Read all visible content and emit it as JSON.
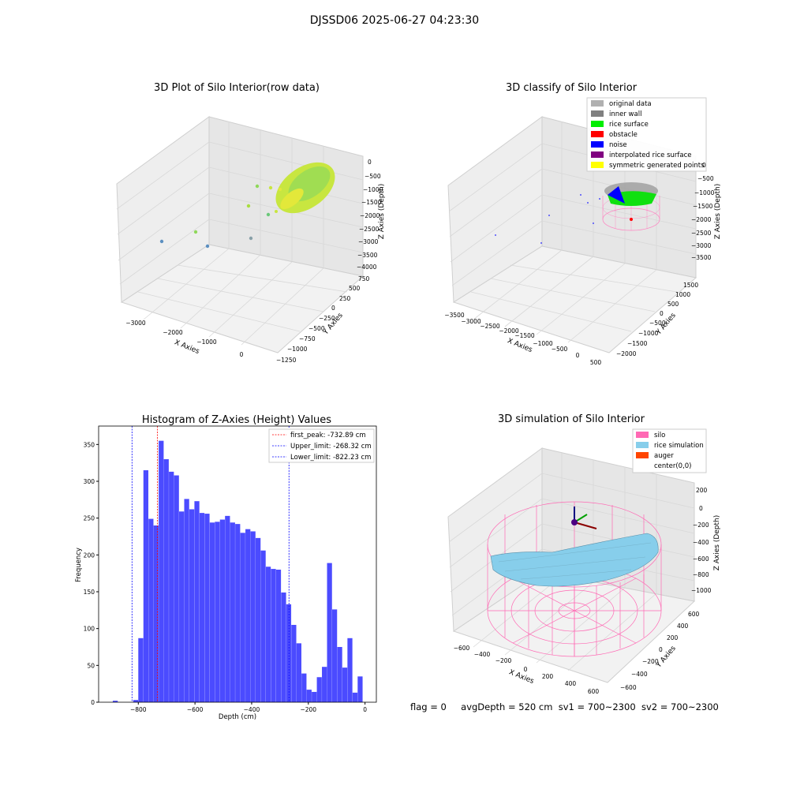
{
  "suptitle": "DJSSD06 2025-06-27 04:23:30",
  "panels": {
    "raw": {
      "title": "3D Plot of Silo Interior(row data)",
      "xlabel": "X Axies",
      "ylabel": "Y Axies",
      "zlabel": "Z Axies (Depth)",
      "xticks": [
        "−3000",
        "−2000",
        "−1000",
        "0"
      ],
      "yticks": [
        "750",
        "500",
        "250",
        "0",
        "−250",
        "−500",
        "−750",
        "−1000",
        "−1250"
      ],
      "zticks": [
        "0",
        "−500",
        "−1000",
        "−1500",
        "−2000",
        "−2500",
        "−3000",
        "−3500",
        "−4000"
      ]
    },
    "classify": {
      "title": "3D classify of Silo Interior",
      "xlabel": "X Axies",
      "ylabel": "Y Axies",
      "zlabel": "Z Axies (Depth)",
      "xticks": [
        "−3500",
        "−3000",
        "−2500",
        "−2000",
        "−1500",
        "−1000",
        "−500",
        "0",
        "500"
      ],
      "yticks": [
        "1500",
        "1000",
        "500",
        "0",
        "−500",
        "−1000",
        "−1500",
        "−2000"
      ],
      "zticks": [
        "0",
        "−500",
        "−1000",
        "−1500",
        "−2000",
        "−2500",
        "−3000",
        "−3500"
      ],
      "legend": [
        {
          "label": "original data",
          "color": "#b0b0b0"
        },
        {
          "label": "inner wall",
          "color": "#808080"
        },
        {
          "label": "rice surface",
          "color": "#00ee00"
        },
        {
          "label": "obstacle",
          "color": "#ff0000"
        },
        {
          "label": "noise",
          "color": "#0000ff"
        },
        {
          "label": "interpolated rice surface",
          "color": "#800080"
        },
        {
          "label": "symmetric generated points",
          "color": "#ffff00"
        }
      ]
    },
    "simulation": {
      "title": "3D simulation of Silo Interior",
      "xlabel": "X Axies",
      "ylabel": "Y Axies",
      "zlabel": "Z Axies (Depth)",
      "xticks": [
        "−600",
        "−400",
        "−200",
        "0",
        "200",
        "400",
        "600"
      ],
      "yticks": [
        "600",
        "400",
        "200",
        "0",
        "−200",
        "−400",
        "−600"
      ],
      "zticks": [
        "200",
        "0",
        "−200",
        "−400",
        "−600",
        "−800",
        "−1000"
      ],
      "legend": [
        {
          "label": "silo",
          "color": "#ff69b4"
        },
        {
          "label": "rice simulation",
          "color": "#87ceeb"
        },
        {
          "label": "auger",
          "color": "#ff4500"
        },
        {
          "label": "center(0,0)",
          "color": "#ffffff"
        }
      ]
    }
  },
  "status": {
    "flag": "flag = 0",
    "avg": "avgDepth = 520 cm",
    "sv1": "sv1 = 700~2300",
    "sv2": "sv2 = 700~2300"
  },
  "chart_data": [
    {
      "type": "bar",
      "title": "Histogram of Z-Axies (Height) Values",
      "xlabel": "Depth (cm)",
      "ylabel": "Frequency",
      "xlim": [
        -940,
        40
      ],
      "ylim": [
        0,
        375
      ],
      "xticks": [
        -800,
        -600,
        -400,
        -200,
        0
      ],
      "yticks": [
        0,
        50,
        100,
        150,
        200,
        250,
        300,
        350
      ],
      "bar_color": "#4b4bff",
      "bin_width": 18,
      "bins": [
        {
          "x": -890,
          "y": 2
        },
        {
          "x": -818,
          "y": 3
        },
        {
          "x": -800,
          "y": 87
        },
        {
          "x": -782,
          "y": 315
        },
        {
          "x": -764,
          "y": 249
        },
        {
          "x": -746,
          "y": 240
        },
        {
          "x": -728,
          "y": 355
        },
        {
          "x": -710,
          "y": 330
        },
        {
          "x": -692,
          "y": 313
        },
        {
          "x": -674,
          "y": 308
        },
        {
          "x": -656,
          "y": 259
        },
        {
          "x": -638,
          "y": 276
        },
        {
          "x": -620,
          "y": 262
        },
        {
          "x": -602,
          "y": 273
        },
        {
          "x": -584,
          "y": 257
        },
        {
          "x": -566,
          "y": 256
        },
        {
          "x": -548,
          "y": 244
        },
        {
          "x": -530,
          "y": 245
        },
        {
          "x": -512,
          "y": 248
        },
        {
          "x": -494,
          "y": 253
        },
        {
          "x": -476,
          "y": 244
        },
        {
          "x": -458,
          "y": 242
        },
        {
          "x": -440,
          "y": 230
        },
        {
          "x": -422,
          "y": 235
        },
        {
          "x": -404,
          "y": 232
        },
        {
          "x": -386,
          "y": 223
        },
        {
          "x": -368,
          "y": 206
        },
        {
          "x": -350,
          "y": 184
        },
        {
          "x": -332,
          "y": 181
        },
        {
          "x": -314,
          "y": 180
        },
        {
          "x": -296,
          "y": 149
        },
        {
          "x": -278,
          "y": 133
        },
        {
          "x": -260,
          "y": 105
        },
        {
          "x": -242,
          "y": 80
        },
        {
          "x": -224,
          "y": 39
        },
        {
          "x": -206,
          "y": 17
        },
        {
          "x": -188,
          "y": 14
        },
        {
          "x": -170,
          "y": 34
        },
        {
          "x": -152,
          "y": 48
        },
        {
          "x": -134,
          "y": 189
        },
        {
          "x": -116,
          "y": 126
        },
        {
          "x": -98,
          "y": 75
        },
        {
          "x": -80,
          "y": 47
        },
        {
          "x": -62,
          "y": 87
        },
        {
          "x": -44,
          "y": 13
        },
        {
          "x": -26,
          "y": 35
        }
      ],
      "vlines": [
        {
          "x": -732.89,
          "color": "#ff0000",
          "label": "first_peak: -732.89 cm"
        },
        {
          "x": -268.32,
          "color": "#0000ff",
          "label": "Upper_limit: -268.32 cm"
        },
        {
          "x": -822.23,
          "color": "#0000ff",
          "label": "Lower_limit: -822.23 cm"
        }
      ]
    }
  ]
}
